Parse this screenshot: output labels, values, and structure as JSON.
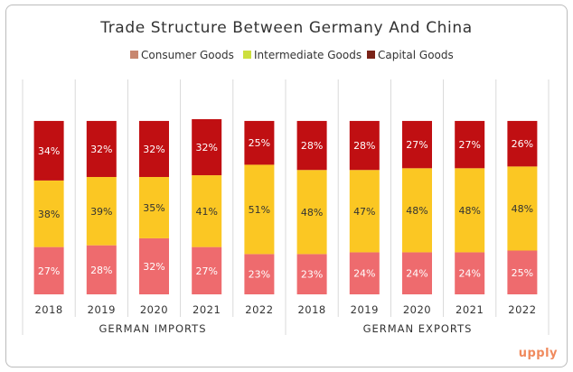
{
  "brand": "upply",
  "colors": {
    "consumer": "#ee6b6e",
    "intermediate": "#fbc723",
    "capital": "#c00f12",
    "consumer_legend": "#c8876f",
    "intermediate_legend": "#cddf3e",
    "capital_legend": "#7a2318",
    "grid": "#d9d9d9"
  },
  "chart_data": {
    "type": "bar",
    "stacked": true,
    "title": "Trade Structure Between Germany And China",
    "legend_position": "top",
    "categories": [
      "2018",
      "2019",
      "2020",
      "2021",
      "2022",
      "2018",
      "2019",
      "2020",
      "2021",
      "2022"
    ],
    "groups": [
      {
        "label": "GERMAN IMPORTS",
        "count": 5
      },
      {
        "label": "GERMAN EXPORTS",
        "count": 5
      }
    ],
    "series": [
      {
        "name": "Consumer Goods",
        "values": [
          27,
          28,
          32,
          27,
          23,
          23,
          24,
          24,
          24,
          25
        ],
        "labels": [
          "27%",
          "28%",
          "32%",
          "27%",
          "23%",
          "23%",
          "24%",
          "24%",
          "24%",
          "25%"
        ]
      },
      {
        "name": "Intermediate Goods",
        "values": [
          38,
          39,
          35,
          41,
          51,
          48,
          47,
          48,
          48,
          48
        ],
        "labels": [
          "38%",
          "39%",
          "35%",
          "41%",
          "51%",
          "48%",
          "47%",
          "48%",
          "48%",
          "48%"
        ]
      },
      {
        "name": "Capital Goods",
        "values": [
          34,
          32,
          32,
          32,
          25,
          28,
          28,
          27,
          27,
          26
        ],
        "labels": [
          "34%",
          "32%",
          "32%",
          "32%",
          "25%",
          "28%",
          "28%",
          "27%",
          "27%",
          "26%"
        ]
      }
    ]
  }
}
